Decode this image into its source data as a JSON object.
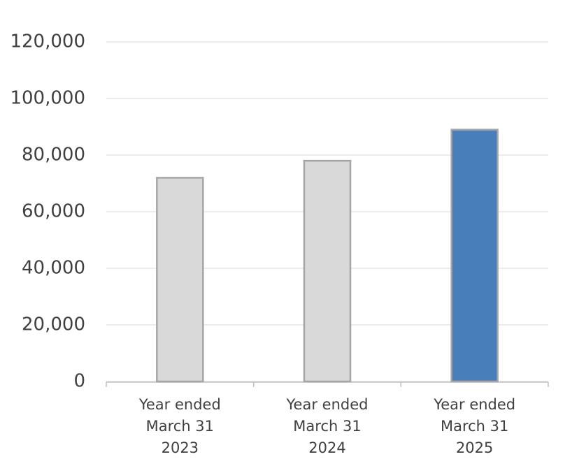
{
  "chart_data": {
    "type": "bar",
    "categories": [
      [
        "Year ended",
        "March 31",
        "2023"
      ],
      [
        "Year ended",
        "March 31",
        "2024"
      ],
      [
        "Year ended",
        "March 31",
        "2025"
      ]
    ],
    "values": [
      72000,
      78000,
      89000
    ],
    "colors": [
      "#d9d9d9",
      "#d9d9d9",
      "#4a7ebb"
    ],
    "ylim": [
      0,
      120000
    ],
    "yticks": [
      0,
      {
        "value": 20000,
        "label": "20,000"
      },
      {
        "value": 40000,
        "label": "40,000"
      },
      {
        "value": 60000,
        "label": "60,000"
      },
      {
        "value": 80000,
        "label": "80,000"
      },
      {
        "value": 100000,
        "label": "100,000"
      },
      {
        "value": 120000,
        "label": "120,000"
      }
    ],
    "grid": true
  }
}
